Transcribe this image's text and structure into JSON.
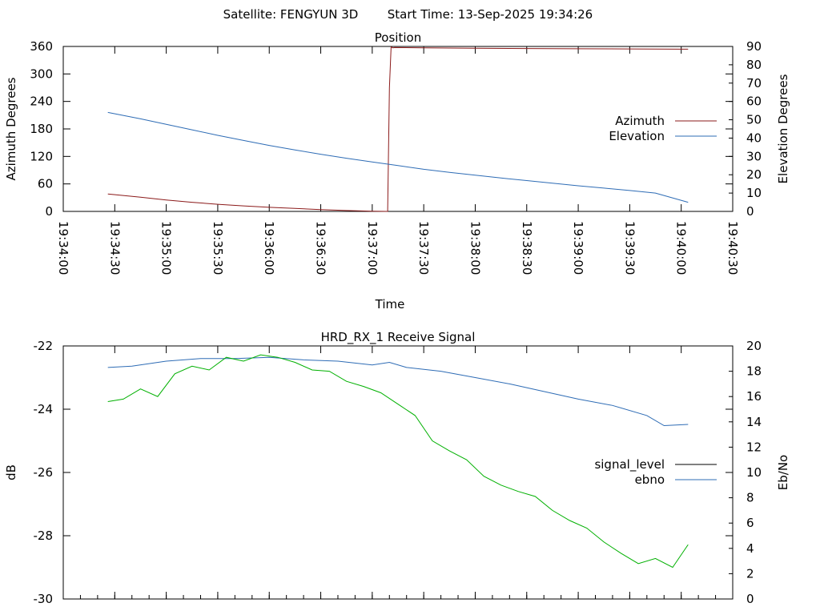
{
  "header": {
    "satellite_label": "Satellite: FENGYUN 3D",
    "start_time_label": "Start Time: 13-Sep-2025 19:34:26"
  },
  "chart_data": [
    {
      "type": "line",
      "title": "Position",
      "xlabel": "Time",
      "ylabel": "Azimuth Degrees",
      "y2label": "Elevation Degrees",
      "x_ticks": [
        "19:34:00",
        "19:34:30",
        "19:35:00",
        "19:35:30",
        "19:36:00",
        "19:36:30",
        "19:37:00",
        "19:37:30",
        "19:38:00",
        "19:38:30",
        "19:39:00",
        "19:39:30",
        "19:40:00",
        "19:40:30"
      ],
      "xlim": [
        "19:34:00",
        "19:40:30"
      ],
      "ylim": [
        0,
        360
      ],
      "y_ticks": [
        0,
        60,
        120,
        180,
        240,
        300,
        360
      ],
      "y2lim": [
        0,
        90
      ],
      "y2_ticks": [
        0,
        10,
        20,
        30,
        40,
        50,
        60,
        70,
        80,
        90
      ],
      "legend_position": "right",
      "series": [
        {
          "name": "Azimuth",
          "axis": "y",
          "color": "#8b1a1a",
          "x": [
            "19:34:26",
            "19:34:45",
            "19:35:00",
            "19:35:15",
            "19:35:30",
            "19:35:45",
            "19:36:00",
            "19:36:15",
            "19:36:30",
            "19:36:45",
            "19:37:00",
            "19:37:09",
            "19:37:10",
            "19:37:11",
            "19:37:12",
            "19:37:13",
            "19:37:30",
            "19:38:00",
            "19:38:30",
            "19:39:00",
            "19:39:30",
            "19:40:00",
            "19:40:04"
          ],
          "values": [
            38,
            31,
            25,
            20,
            15.5,
            12,
            9,
            6.5,
            4,
            2,
            0.5,
            0,
            270,
            359,
            357,
            357.5,
            357,
            356,
            355.5,
            355,
            354.5,
            354,
            354
          ]
        },
        {
          "name": "Elevation",
          "axis": "y2",
          "color": "#2e6cb5",
          "x": [
            "19:34:26",
            "19:34:45",
            "19:35:00",
            "19:35:15",
            "19:35:30",
            "19:35:45",
            "19:36:00",
            "19:36:15",
            "19:36:30",
            "19:36:45",
            "19:37:00",
            "19:37:15",
            "19:37:30",
            "19:37:45",
            "19:38:00",
            "19:38:15",
            "19:38:30",
            "19:38:45",
            "19:39:00",
            "19:39:15",
            "19:39:30",
            "19:39:45",
            "19:40:04"
          ],
          "values": [
            54,
            50.5,
            47.5,
            44.5,
            41.5,
            38.7,
            36,
            33.5,
            31.2,
            29,
            27,
            25,
            23,
            21.3,
            19.8,
            18.2,
            16.8,
            15.4,
            14,
            12.7,
            11.4,
            10,
            5
          ]
        }
      ]
    },
    {
      "type": "line",
      "title": "HRD_RX_1 Receive Signal",
      "ylabel": "dB",
      "y2label": "Eb/No",
      "ylim": [
        -30,
        -22
      ],
      "y_ticks": [
        -30,
        -28,
        -26,
        -24,
        -22
      ],
      "y2lim": [
        0,
        20
      ],
      "y2_ticks": [
        0,
        2,
        4,
        6,
        8,
        10,
        12,
        14,
        16,
        18,
        20
      ],
      "xlim": [
        "19:34:00",
        "19:40:30"
      ],
      "legend_position": "right",
      "series": [
        {
          "name": "signal_level",
          "axis": "y",
          "color": "#000000",
          "x": [],
          "values": []
        },
        {
          "name": "ebno",
          "axis": "y2",
          "color": "#2e6cb5",
          "x": [
            "19:34:26",
            "19:34:40",
            "19:35:00",
            "19:35:20",
            "19:35:40",
            "19:36:00",
            "19:36:20",
            "19:36:40",
            "19:37:00",
            "19:37:10",
            "19:37:20",
            "19:37:40",
            "19:38:00",
            "19:38:20",
            "19:38:40",
            "19:39:00",
            "19:39:20",
            "19:39:40",
            "19:39:50",
            "19:40:04"
          ],
          "values": [
            18.3,
            18.4,
            18.8,
            19.0,
            19.0,
            19.1,
            18.9,
            18.8,
            18.5,
            18.7,
            18.3,
            18.0,
            17.5,
            17.0,
            16.4,
            15.8,
            15.3,
            14.5,
            13.7,
            13.8
          ]
        },
        {
          "name": "",
          "axis": "y2",
          "color": "#00b000",
          "x": [
            "19:34:26",
            "19:34:35",
            "19:34:45",
            "19:34:55",
            "19:35:05",
            "19:35:15",
            "19:35:25",
            "19:35:35",
            "19:35:45",
            "19:35:55",
            "19:36:05",
            "19:36:15",
            "19:36:25",
            "19:36:35",
            "19:36:45",
            "19:36:55",
            "19:37:05",
            "19:37:15",
            "19:37:25",
            "19:37:35",
            "19:37:45",
            "19:37:55",
            "19:38:05",
            "19:38:15",
            "19:38:25",
            "19:38:35",
            "19:38:45",
            "19:38:55",
            "19:39:05",
            "19:39:15",
            "19:39:25",
            "19:39:35",
            "19:39:45",
            "19:39:55",
            "19:40:04"
          ],
          "values": [
            15.6,
            15.8,
            16.6,
            16.0,
            17.8,
            18.4,
            18.1,
            19.1,
            18.8,
            19.3,
            19.1,
            18.7,
            18.1,
            18.0,
            17.2,
            16.8,
            16.3,
            15.4,
            14.5,
            12.5,
            11.7,
            11.0,
            9.7,
            9.0,
            8.5,
            8.1,
            7.0,
            6.2,
            5.6,
            4.5,
            3.6,
            2.8,
            3.2,
            2.5,
            4.3
          ]
        }
      ]
    }
  ]
}
